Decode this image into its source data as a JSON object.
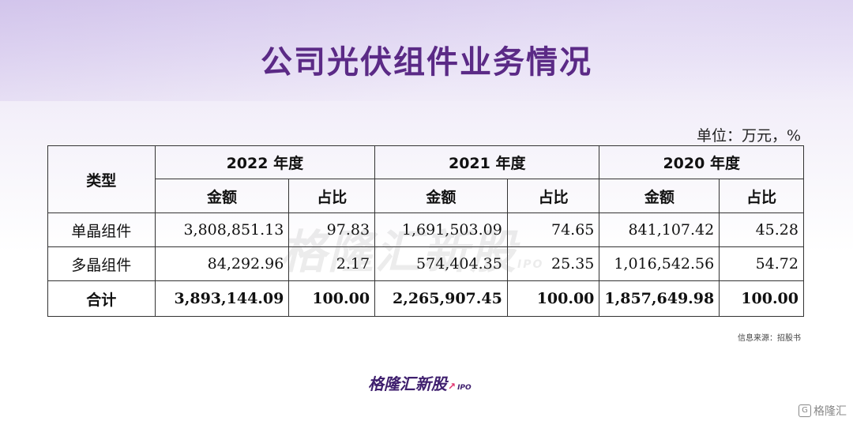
{
  "title": "公司光伏组件业务情况",
  "unit_note": "单位：万元，%",
  "table": {
    "type_header": "类型",
    "years": [
      "2022 年度",
      "2021 年度",
      "2020 年度"
    ],
    "sub_headers": [
      "金额",
      "占比",
      "金额",
      "占比",
      "金额",
      "占比"
    ],
    "rows": [
      {
        "label": "单晶组件",
        "cells": [
          "3,808,851.13",
          "97.83",
          "1,691,503.09",
          "74.65",
          "841,107.42",
          "45.28"
        ]
      },
      {
        "label": "多晶组件",
        "cells": [
          "84,292.96",
          "2.17",
          "574,404.35",
          "25.35",
          "1,016,542.56",
          "54.72"
        ]
      }
    ],
    "total": {
      "label": "合计",
      "cells": [
        "3,893,144.09",
        "100.00",
        "2,265,907.45",
        "100.00",
        "1,857,649.98",
        "100.00"
      ]
    }
  },
  "watermark": "格隆汇新股",
  "watermark_suffix": "IPO",
  "source_note": "信息来源：招股书",
  "logo": {
    "text": "格隆汇新股",
    "suffix": "IPO"
  },
  "corner_mark": {
    "icon": "G",
    "text": "格隆汇"
  }
}
